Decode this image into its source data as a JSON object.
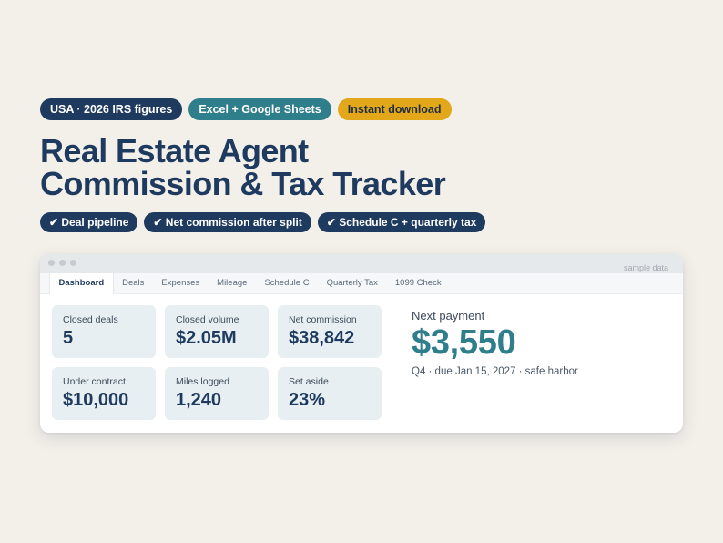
{
  "badges": [
    {
      "label": "USA · 2026 IRS figures"
    },
    {
      "label": "Excel + Google Sheets"
    },
    {
      "label": "Instant download"
    }
  ],
  "title": {
    "line1": "Real Estate Agent",
    "line2": "Commission & Tax Tracker"
  },
  "features": [
    {
      "label": "✔ Deal pipeline"
    },
    {
      "label": "✔ Net commission after split"
    },
    {
      "label": "✔ Schedule C + quarterly tax"
    }
  ],
  "window": {
    "note": "sample data",
    "tabs": [
      {
        "label": "Dashboard",
        "active": true
      },
      {
        "label": "Deals"
      },
      {
        "label": "Expenses"
      },
      {
        "label": "Mileage"
      },
      {
        "label": "Schedule C"
      },
      {
        "label": "Quarterly Tax"
      },
      {
        "label": "1099 Check"
      }
    ],
    "cards": [
      {
        "label": "Closed deals",
        "value": "5"
      },
      {
        "label": "Closed volume",
        "value": "$2.05M"
      },
      {
        "label": "Net commission",
        "value": "$38,842"
      },
      {
        "label": "Under contract",
        "value": "$10,000"
      },
      {
        "label": "Miles logged",
        "value": "1,240"
      },
      {
        "label": "Set aside",
        "value": "23%"
      }
    ],
    "next_payment": {
      "label": "Next payment",
      "amount": "$3,550",
      "note": "Q4 · due Jan 15, 2027 · safe harbor"
    }
  },
  "colors": {
    "navy": "#1e3a5f",
    "teal": "#2f7e8c",
    "gold": "#e3a71a",
    "background": "#f3f0ea",
    "card": "#e8eff2"
  }
}
